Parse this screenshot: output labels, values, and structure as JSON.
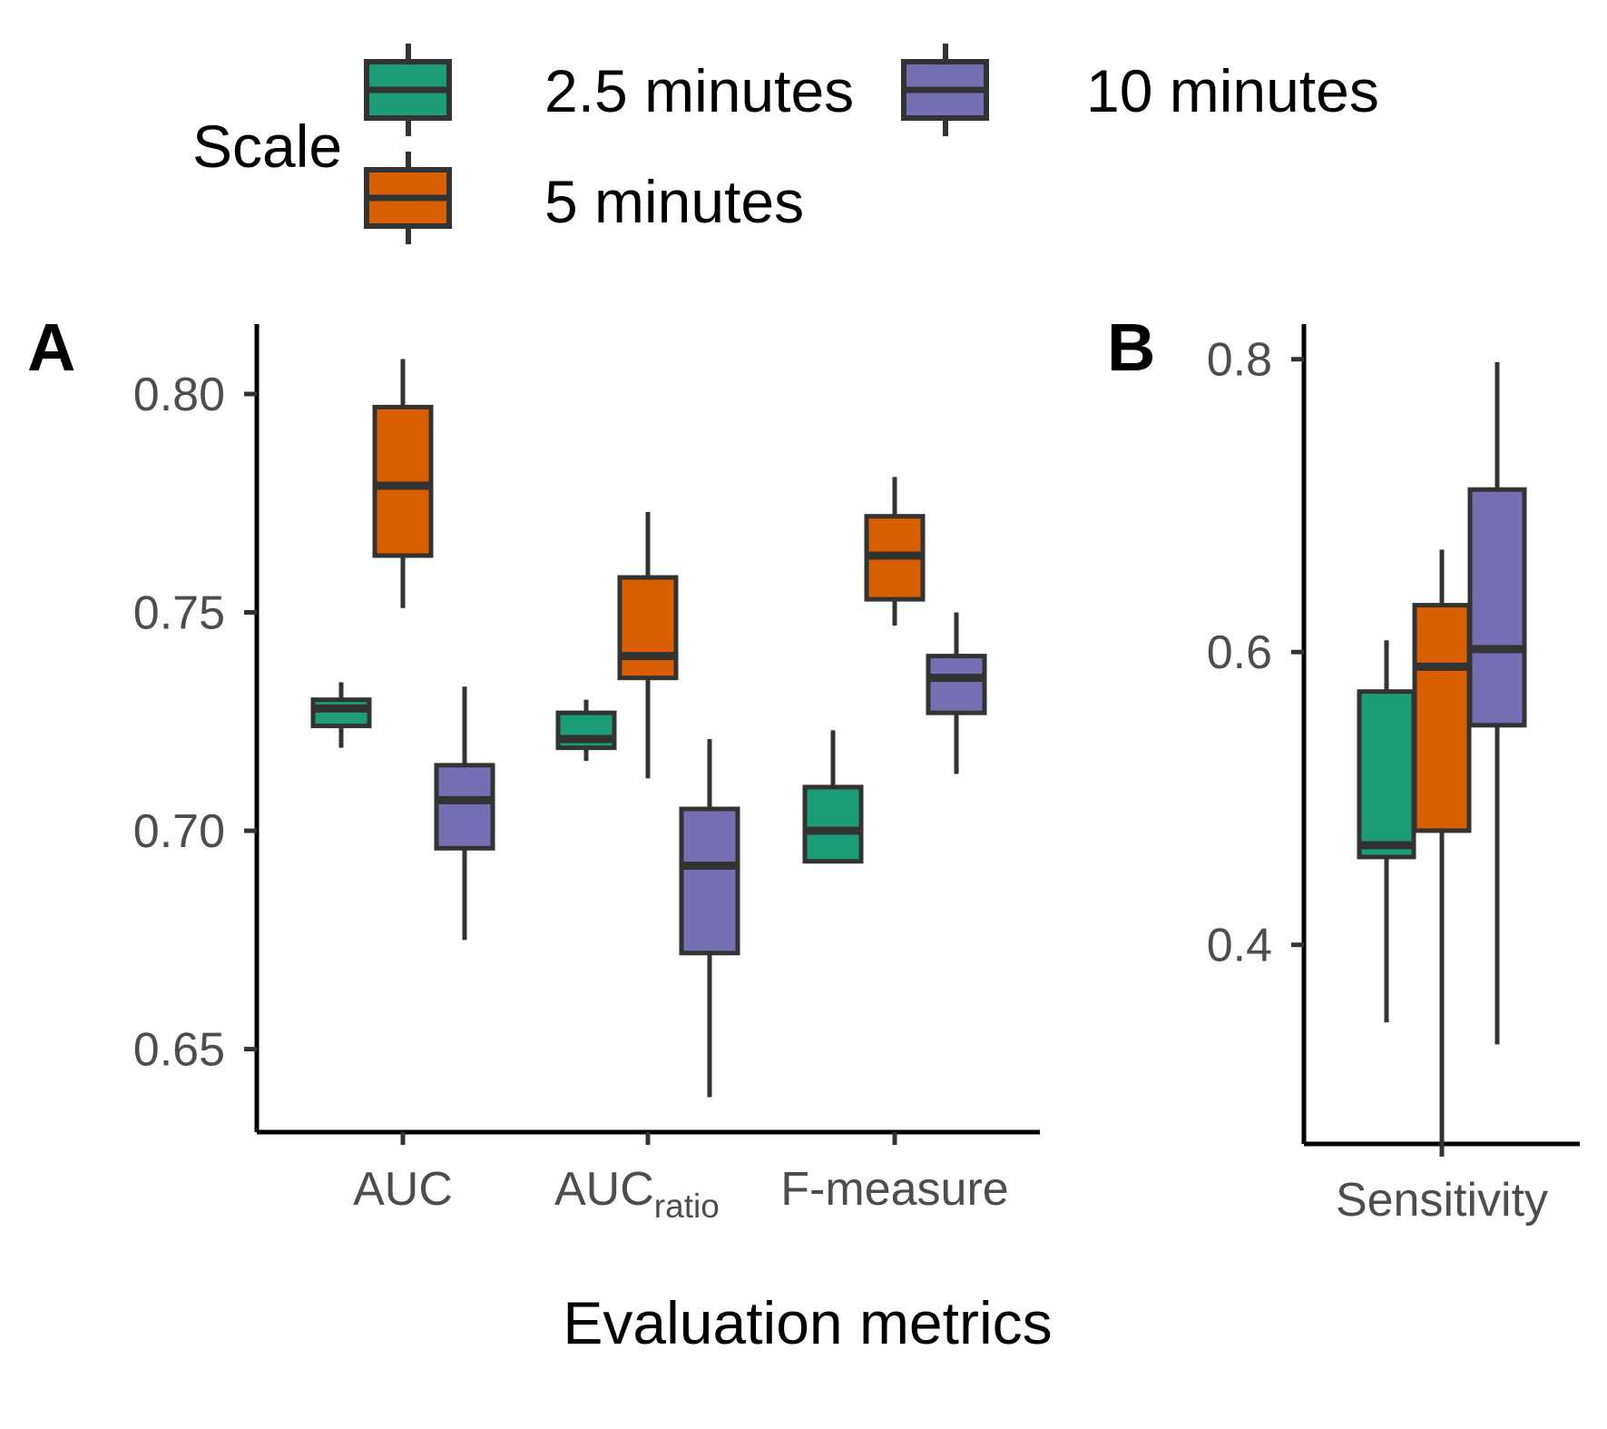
{
  "legend": {
    "title": "Scale",
    "entries": [
      {
        "label": "2.5 minutes",
        "color": "#1b9e77"
      },
      {
        "label": "5 minutes",
        "color": "#d95f02"
      },
      {
        "label": "10 minutes",
        "color": "#7570b3"
      }
    ]
  },
  "xlabel": "Evaluation metrics",
  "colors": {
    "outline": "#333333",
    "axis": "#000000",
    "tick_text": "#4d4d4d"
  },
  "chart_data": [
    {
      "type": "box",
      "panel": "A",
      "categories": [
        "AUC",
        "AUCratio",
        "F-measure"
      ],
      "category_display": [
        {
          "main": "AUC",
          "sub": ""
        },
        {
          "main": "AUC",
          "sub": "ratio"
        },
        {
          "main": "F-measure",
          "sub": ""
        }
      ],
      "ylim": [
        0.631,
        0.816
      ],
      "yticks": [
        "0.65",
        "0.70",
        "0.75",
        "0.80"
      ],
      "series": [
        {
          "name": "2.5 minutes",
          "boxes": [
            {
              "low": 0.719,
              "q1": 0.724,
              "median": 0.728,
              "q3": 0.73,
              "high": 0.734
            },
            {
              "low": 0.716,
              "q1": 0.719,
              "median": 0.721,
              "q3": 0.727,
              "high": 0.73
            },
            {
              "low": 0.693,
              "q1": 0.693,
              "median": 0.7,
              "q3": 0.71,
              "high": 0.723
            }
          ]
        },
        {
          "name": "5 minutes",
          "boxes": [
            {
              "low": 0.751,
              "q1": 0.763,
              "median": 0.779,
              "q3": 0.797,
              "high": 0.808
            },
            {
              "low": 0.712,
              "q1": 0.735,
              "median": 0.74,
              "q3": 0.758,
              "high": 0.773
            },
            {
              "low": 0.747,
              "q1": 0.753,
              "median": 0.763,
              "q3": 0.772,
              "high": 0.781
            }
          ]
        },
        {
          "name": "10 minutes",
          "boxes": [
            {
              "low": 0.675,
              "q1": 0.696,
              "median": 0.707,
              "q3": 0.715,
              "high": 0.733
            },
            {
              "low": 0.639,
              "q1": 0.672,
              "median": 0.692,
              "q3": 0.705,
              "high": 0.721
            },
            {
              "low": 0.713,
              "q1": 0.727,
              "median": 0.735,
              "q3": 0.74,
              "high": 0.75
            }
          ]
        }
      ]
    },
    {
      "type": "box",
      "panel": "B",
      "categories": [
        "Sensitivity"
      ],
      "category_display": [
        {
          "main": "Sensitivity",
          "sub": ""
        }
      ],
      "ylim": [
        0.264,
        0.824
      ],
      "yticks": [
        "0.4",
        "0.6",
        "0.8"
      ],
      "series": [
        {
          "name": "2.5 minutes",
          "boxes": [
            {
              "low": 0.347,
              "q1": 0.46,
              "median": 0.468,
              "q3": 0.573,
              "high": 0.608
            }
          ]
        },
        {
          "name": "5 minutes",
          "boxes": [
            {
              "low": 0.263,
              "q1": 0.478,
              "median": 0.59,
              "q3": 0.632,
              "high": 0.67
            }
          ]
        },
        {
          "name": "10 minutes",
          "boxes": [
            {
              "low": 0.332,
              "q1": 0.55,
              "median": 0.602,
              "q3": 0.711,
              "high": 0.798
            }
          ]
        }
      ]
    }
  ]
}
